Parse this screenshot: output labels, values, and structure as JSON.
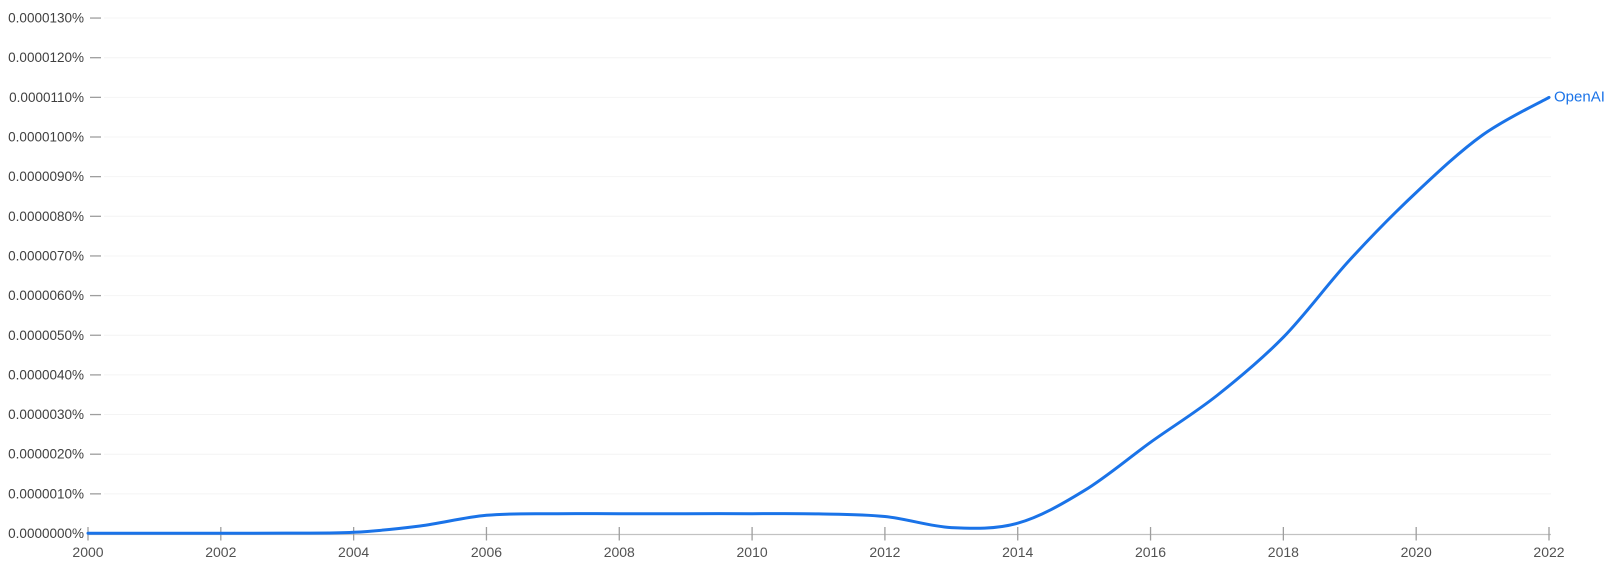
{
  "chart_data": {
    "type": "line",
    "title": "",
    "xlabel": "",
    "ylabel": "",
    "grid": "horizontal-only",
    "legend_position": "end-of-line",
    "xlim": [
      2000,
      2022
    ],
    "ylim_percent": [
      0,
      1.35e-05
    ],
    "x_tick_values": [
      2000,
      2002,
      2004,
      2006,
      2008,
      2010,
      2012,
      2014,
      2016,
      2018,
      2020,
      2022
    ],
    "x_tick_labels": [
      "2000",
      "2002",
      "2004",
      "2006",
      "2008",
      "2010",
      "2012",
      "2014",
      "2016",
      "2018",
      "2020",
      "2022"
    ],
    "y_tick_values_percent": [
      0,
      1e-06,
      2e-06,
      3e-06,
      4e-06,
      5e-06,
      6e-06,
      7e-06,
      8e-06,
      9e-06,
      1e-05,
      1.1e-05,
      1.2e-05,
      1.3e-05
    ],
    "y_tick_labels": [
      "0.0000000%",
      "0.0000010%",
      "0.0000020%",
      "0.0000030%",
      "0.0000040%",
      "0.0000050%",
      "0.0000060%",
      "0.0000070%",
      "0.0000080%",
      "0.0000090%",
      "0.0000100%",
      "0.0000110%",
      "0.0000120%",
      "0.0000130%"
    ],
    "series": [
      {
        "name": "OpenAI",
        "color": "#1a73e8",
        "x": [
          2000,
          2001,
          2002,
          2003,
          2004,
          2005,
          2006,
          2007,
          2008,
          2009,
          2010,
          2011,
          2012,
          2013,
          2014,
          2015,
          2016,
          2017,
          2018,
          2019,
          2020,
          2021,
          2022
        ],
        "values_percent": [
          4e-09,
          4e-09,
          5e-09,
          9e-09,
          3e-08,
          1.9e-07,
          4.6e-07,
          5e-07,
          5e-07,
          5e-07,
          5e-07,
          4.95e-07,
          4.3e-07,
          1.5e-07,
          2.6e-07,
          1.08e-06,
          2.3e-06,
          3.48e-06,
          4.95e-06,
          6.9e-06,
          8.6e-06,
          1.005e-05,
          1.1e-05
        ]
      }
    ]
  },
  "colors": {
    "background": "#ffffff",
    "line": "#1a73e8",
    "series_label_text": "#1a73e8",
    "gridline": "#f4f4f4",
    "axis_line": "#c2c2c2",
    "tick_mark": "#9e9e9e",
    "y_label_text": "#3f3f3f",
    "x_label_text": "#525252"
  }
}
